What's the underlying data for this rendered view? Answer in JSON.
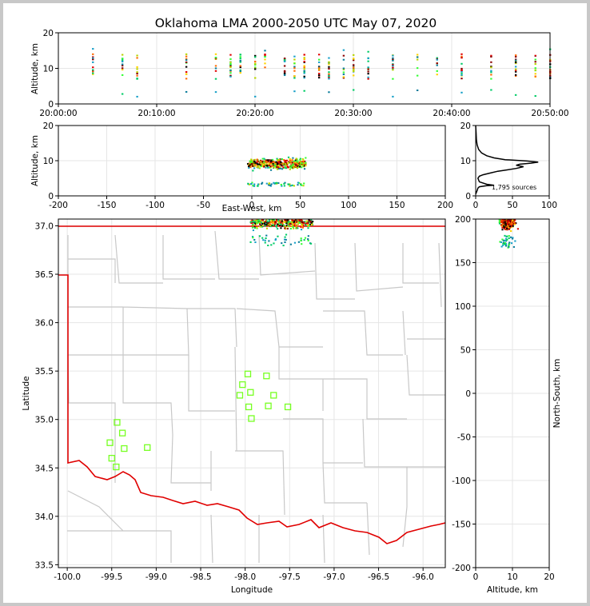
{
  "chart_data": [
    {
      "type": "scatter",
      "panel": "altitude-time",
      "title": "Oklahoma LMA 2000-2050 UTC May 07, 2020",
      "xlabel": "",
      "ylabel": "Altitude, km",
      "x_ticks": [
        "20:00:00",
        "20:10:00",
        "20:20:00",
        "20:30:00",
        "20:40:00",
        "20:50:00"
      ],
      "xlim_minutes": [
        0,
        50
      ],
      "ylim": [
        0,
        20
      ],
      "y_ticks": [
        0,
        10,
        20
      ],
      "grid": true,
      "source_columns_minutes": [
        3.5,
        6.5,
        8.0,
        13.0,
        16.0,
        17.5,
        18.5,
        20.0,
        21.0,
        23.0,
        24.0,
        25.0,
        26.5,
        27.5,
        29.0,
        30.0,
        31.5,
        34.0,
        36.5,
        38.5,
        41.0,
        44.0,
        46.5,
        48.5,
        50.0
      ],
      "altitude_range_km": [
        2,
        16
      ],
      "core_altitude_km": [
        8,
        12
      ]
    },
    {
      "type": "scatter",
      "panel": "altitude-east-west",
      "xlabel": "East-West, km",
      "ylabel": "Altitude, km",
      "xlim": [
        -200,
        200
      ],
      "x_ticks": [
        -200,
        -150,
        -100,
        -50,
        0,
        50,
        100,
        150,
        200
      ],
      "ylim": [
        0,
        20
      ],
      "y_ticks": [
        0,
        10,
        20
      ],
      "grid": true,
      "source_region_km": {
        "x": [
          -5,
          55
        ],
        "altitude": [
          2,
          12
        ]
      }
    },
    {
      "type": "line",
      "panel": "altitude-histogram",
      "annotation": "1,795 sources",
      "xlim": [
        0,
        100
      ],
      "x_ticks": [
        0,
        50,
        100
      ],
      "ylim": [
        0,
        20
      ],
      "y_ticks": [
        0,
        10,
        20
      ],
      "grid": true,
      "profile": [
        [
          0,
          0.5
        ],
        [
          1,
          1
        ],
        [
          2,
          1.5
        ],
        [
          3,
          2.2
        ],
        [
          5,
          2.6
        ],
        [
          15,
          2.9
        ],
        [
          25,
          3.0
        ],
        [
          15,
          3.3
        ],
        [
          5,
          4.0
        ],
        [
          3,
          5.0
        ],
        [
          5,
          5.6
        ],
        [
          10,
          6.0
        ],
        [
          20,
          6.5
        ],
        [
          30,
          7.0
        ],
        [
          40,
          7.3
        ],
        [
          55,
          7.8
        ],
        [
          65,
          8.3
        ],
        [
          55,
          8.7
        ],
        [
          60,
          9.0
        ],
        [
          75,
          9.3
        ],
        [
          85,
          9.6
        ],
        [
          70,
          9.9
        ],
        [
          40,
          10.3
        ],
        [
          25,
          10.8
        ],
        [
          15,
          11.4
        ],
        [
          8,
          12.2
        ],
        [
          4,
          13.2
        ],
        [
          2,
          14.5
        ],
        [
          1,
          16
        ],
        [
          0.5,
          18
        ],
        [
          0,
          20
        ]
      ]
    },
    {
      "type": "scatter",
      "panel": "plan-view",
      "xlabel": "Longitude",
      "ylabel": "Latitude",
      "xlim": [
        -100.1,
        -95.75
      ],
      "x_ticks": [
        -100.0,
        -99.5,
        -99.0,
        -98.5,
        -98.0,
        -97.5,
        -97.0,
        -96.5,
        -96.0
      ],
      "ylim": [
        33.47,
        37.07
      ],
      "y_ticks": [
        33.5,
        34.0,
        34.5,
        35.0,
        35.5,
        36.0,
        36.5,
        37.0
      ],
      "grid": true,
      "stations": [
        [
          -99.52,
          34.76
        ],
        [
          -99.44,
          34.97
        ],
        [
          -99.38,
          34.86
        ],
        [
          -99.5,
          34.6
        ],
        [
          -99.45,
          34.51
        ],
        [
          -99.36,
          34.7
        ],
        [
          -99.1,
          34.71
        ],
        [
          -97.97,
          35.47
        ],
        [
          -98.03,
          35.36
        ],
        [
          -98.06,
          35.25
        ],
        [
          -97.94,
          35.28
        ],
        [
          -97.96,
          35.13
        ],
        [
          -97.93,
          35.01
        ],
        [
          -97.76,
          35.45
        ],
        [
          -97.74,
          35.14
        ],
        [
          -97.68,
          35.25
        ],
        [
          -97.52,
          35.13
        ]
      ],
      "source_region": {
        "lon": [
          -97.95,
          -97.25
        ],
        "lat": [
          36.8,
          37.07
        ]
      }
    },
    {
      "type": "scatter",
      "panel": "north-south-altitude",
      "xlabel": "Altitude, km",
      "ylabel": "North-South, km",
      "xlim": [
        0,
        20
      ],
      "x_ticks": [
        0,
        10,
        20
      ],
      "ylim": [
        -200,
        200
      ],
      "y_ticks": [
        -200,
        -150,
        -100,
        -50,
        0,
        50,
        100,
        150,
        200
      ],
      "grid": true,
      "source_region": {
        "altitude": [
          3,
          13
        ],
        "north_south": [
          168,
          200
        ]
      }
    }
  ],
  "colors": {
    "source_palette": [
      "#0b7d9b",
      "#18a0c8",
      "#00cc66",
      "#33ff33",
      "#b8d400",
      "#ffd400",
      "#ff6a00",
      "#e00000",
      "#8b0000",
      "#000000"
    ],
    "state_border": "#e00000",
    "county_lines": "#c8c8c8",
    "station_marker": "#77ff22",
    "grid": "#e6e6e6",
    "histogram": "#000000"
  }
}
